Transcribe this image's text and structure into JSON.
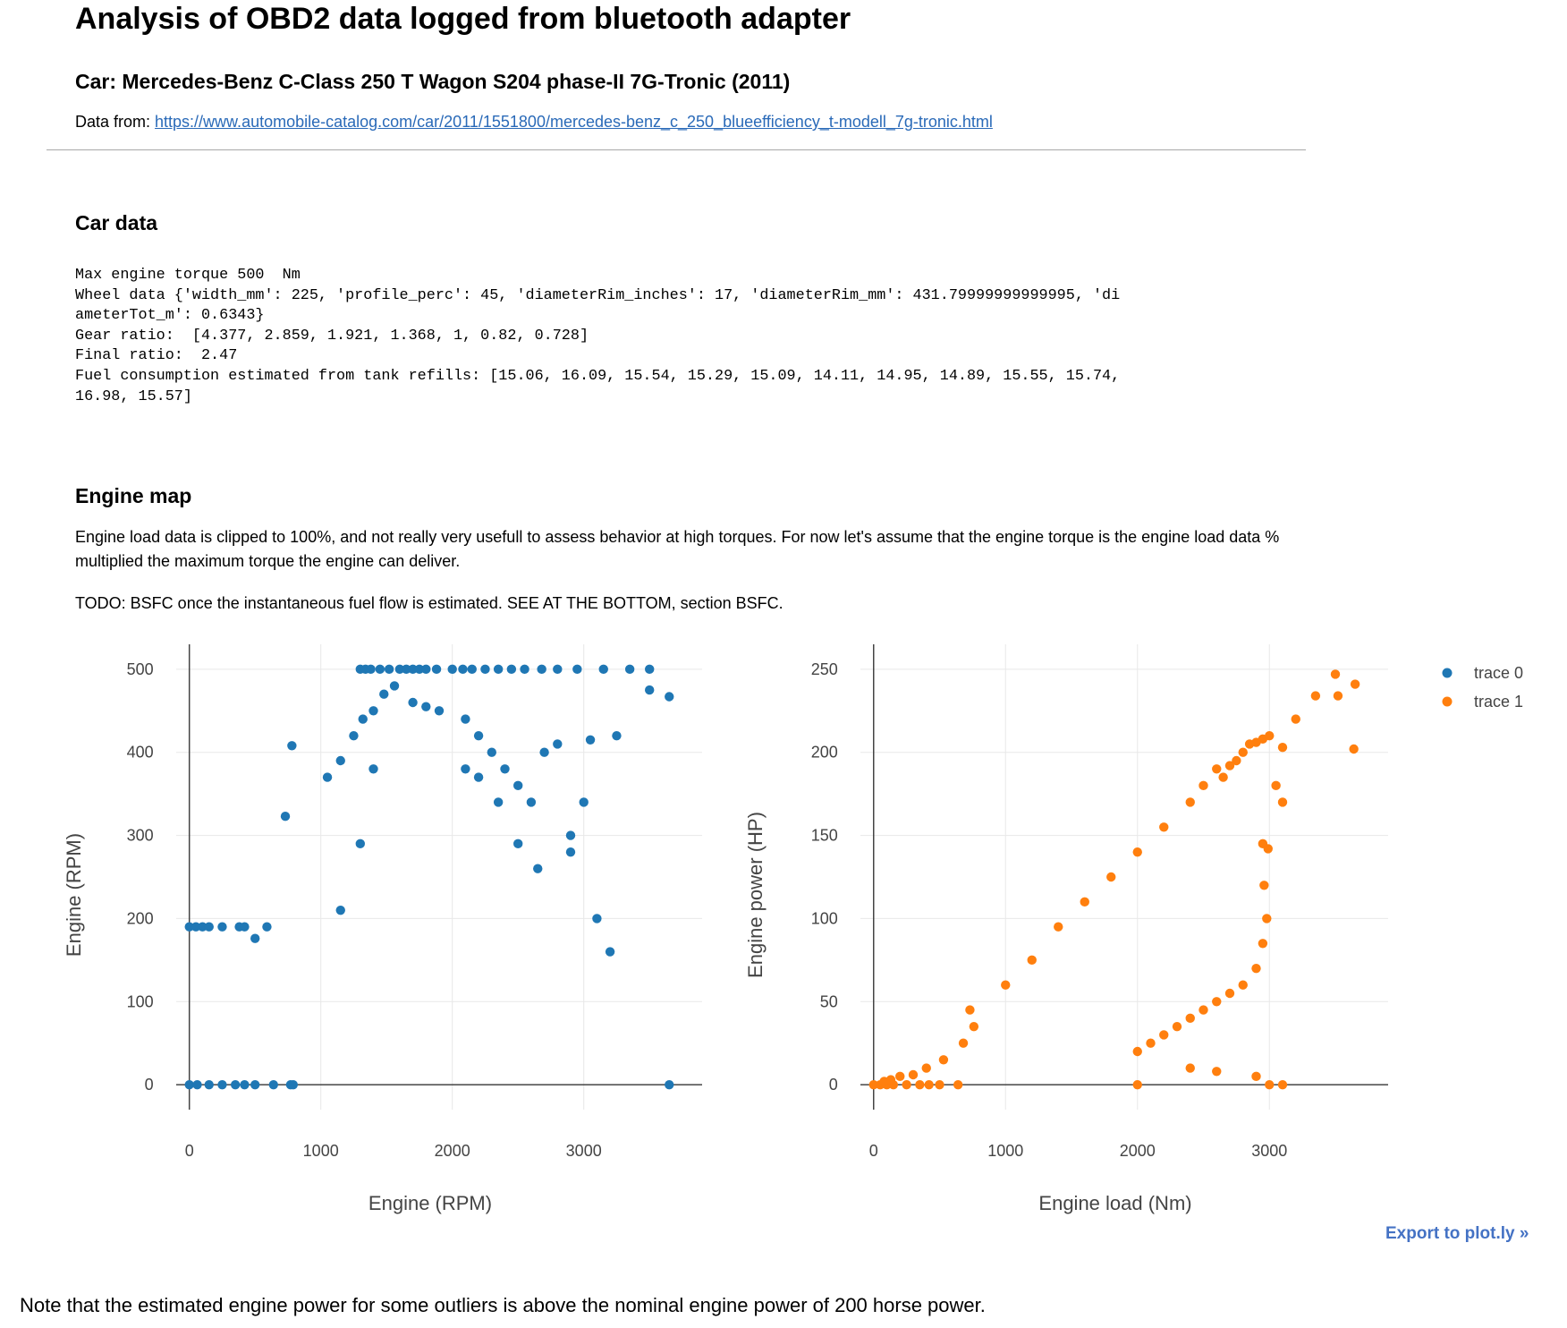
{
  "page": {
    "title": "Analysis of OBD2 data logged from bluetooth adapter",
    "car_title": "Car: Mercedes-Benz C-Class 250 T Wagon S204 phase-II 7G-Tronic (2011)",
    "source_prefix": "Data from: ",
    "source_link": "https://www.automobile-catalog.com/car/2011/1551800/mercedes-benz_c_250_blueefficiency_t-modell_7g-tronic.html"
  },
  "car_data": {
    "heading": "Car data",
    "lines": [
      "Max engine torque 500  Nm",
      "Wheel data {'width_mm': 225, 'profile_perc': 45, 'diameterRim_inches': 17, 'diameterRim_mm': 431.79999999999995, 'di",
      "ameterTot_m': 0.6343}",
      "Gear ratio:  [4.377, 2.859, 1.921, 1.368, 1, 0.82, 0.728]",
      "Final ratio:  2.47",
      "Fuel consumption estimated from tank refills: [15.06, 16.09, 15.54, 15.29, 15.09, 14.11, 14.95, 14.89, 15.55, 15.74,",
      "16.98, 15.57]"
    ]
  },
  "engine_map": {
    "heading": "Engine map",
    "paragraph1": "Engine load data is clipped to 100%, and not really very usefull to assess behavior at high torques. For now let's assume that the engine torque is the engine load data % multiplied the maximum torque the engine can deliver.",
    "paragraph2": "TODO: BSFC once the instantaneous fuel flow is estimated. SEE AT THE BOTTOM, section BSFC."
  },
  "chart_data": [
    {
      "type": "scatter",
      "xlabel": "Engine (RPM)",
      "ylabel": "Engine (RPM)",
      "xlim": [
        -100,
        3900
      ],
      "ylim": [
        -30,
        530
      ],
      "xticks": [
        0,
        1000,
        2000,
        3000
      ],
      "yticks": [
        0,
        100,
        200,
        300,
        400,
        500
      ],
      "grid": true,
      "color": "#1f77b4",
      "series": [
        {
          "name": "trace 0",
          "x": [
            0,
            60,
            150,
            250,
            350,
            420,
            500,
            640,
            770,
            790,
            1300,
            1340,
            1380,
            1450,
            1520,
            1600,
            1650,
            1700,
            1750,
            1800,
            1880,
            2000,
            2080,
            2150,
            2250,
            2350,
            2450,
            2550,
            2680,
            2800,
            2950,
            3150,
            3350,
            3500,
            3650,
            0,
            50,
            100,
            150,
            250,
            380,
            420,
            500,
            590,
            1050,
            1150,
            1250,
            1320,
            1400,
            1480,
            1560,
            1700,
            1800,
            1900,
            2100,
            2200,
            2300,
            2400,
            2500,
            2600,
            2700,
            2800,
            2900,
            3050,
            3250,
            3500,
            3650,
            730,
            780,
            1150,
            1300,
            1400,
            2100,
            2200,
            2350,
            2500,
            2650,
            2900,
            3000,
            3100,
            3200
          ],
          "y": [
            0,
            0,
            0,
            0,
            0,
            0,
            0,
            0,
            0,
            0,
            500,
            500,
            500,
            500,
            500,
            500,
            500,
            500,
            500,
            500,
            500,
            500,
            500,
            500,
            500,
            500,
            500,
            500,
            500,
            500,
            500,
            500,
            500,
            500,
            0,
            190,
            190,
            190,
            190,
            190,
            190,
            190,
            176,
            190,
            370,
            390,
            420,
            440,
            450,
            470,
            480,
            460,
            455,
            450,
            440,
            420,
            400,
            380,
            360,
            340,
            400,
            410,
            300,
            415,
            420,
            475,
            467,
            323,
            408,
            210,
            290,
            380,
            380,
            370,
            340,
            290,
            260,
            280,
            340,
            200,
            160
          ]
        }
      ]
    },
    {
      "type": "scatter",
      "xlabel": "Engine load (Nm)",
      "ylabel": "Engine power (HP)",
      "xlim": [
        -100,
        3900
      ],
      "ylim": [
        -15,
        265
      ],
      "xticks": [
        0,
        1000,
        2000,
        3000
      ],
      "yticks": [
        0,
        50,
        100,
        150,
        200,
        250
      ],
      "grid": true,
      "color": "#ff7f0e",
      "series": [
        {
          "name": "trace 1",
          "x": [
            0,
            50,
            100,
            150,
            250,
            350,
            420,
            500,
            640,
            80,
            130,
            200,
            300,
            400,
            530,
            680,
            730,
            760,
            1000,
            1200,
            1400,
            1600,
            1800,
            2000,
            2200,
            2400,
            2500,
            2600,
            2650,
            2700,
            2750,
            2800,
            2850,
            2900,
            2950,
            3000,
            3100,
            3200,
            3350,
            3500,
            3650,
            3520,
            3640,
            3050,
            3100,
            2950,
            2990,
            2960,
            2980,
            2950,
            2900,
            2800,
            2700,
            2600,
            2500,
            2400,
            2300,
            2200,
            2100,
            2000,
            2000,
            2400,
            2600,
            2900,
            3000,
            3100
          ],
          "y": [
            0,
            0,
            0,
            0,
            0,
            0,
            0,
            0,
            0,
            2,
            3,
            5,
            6,
            10,
            15,
            25,
            45,
            35,
            60,
            75,
            95,
            110,
            125,
            140,
            155,
            170,
            180,
            190,
            185,
            192,
            195,
            200,
            205,
            206,
            208,
            210,
            203,
            220,
            234,
            247,
            241,
            234,
            202,
            180,
            170,
            145,
            142,
            120,
            100,
            85,
            70,
            60,
            55,
            50,
            45,
            40,
            35,
            30,
            25,
            0,
            20,
            10,
            8,
            5,
            0,
            0
          ]
        }
      ]
    }
  ],
  "legend": {
    "items": [
      {
        "name": "trace 0",
        "color": "#1f77b4"
      },
      {
        "name": "trace 1",
        "color": "#ff7f0e"
      }
    ]
  },
  "export_link": "Export to plot.ly »",
  "note": "Note that the estimated engine power for some outliers is above the nominal engine power of 200 horse power."
}
